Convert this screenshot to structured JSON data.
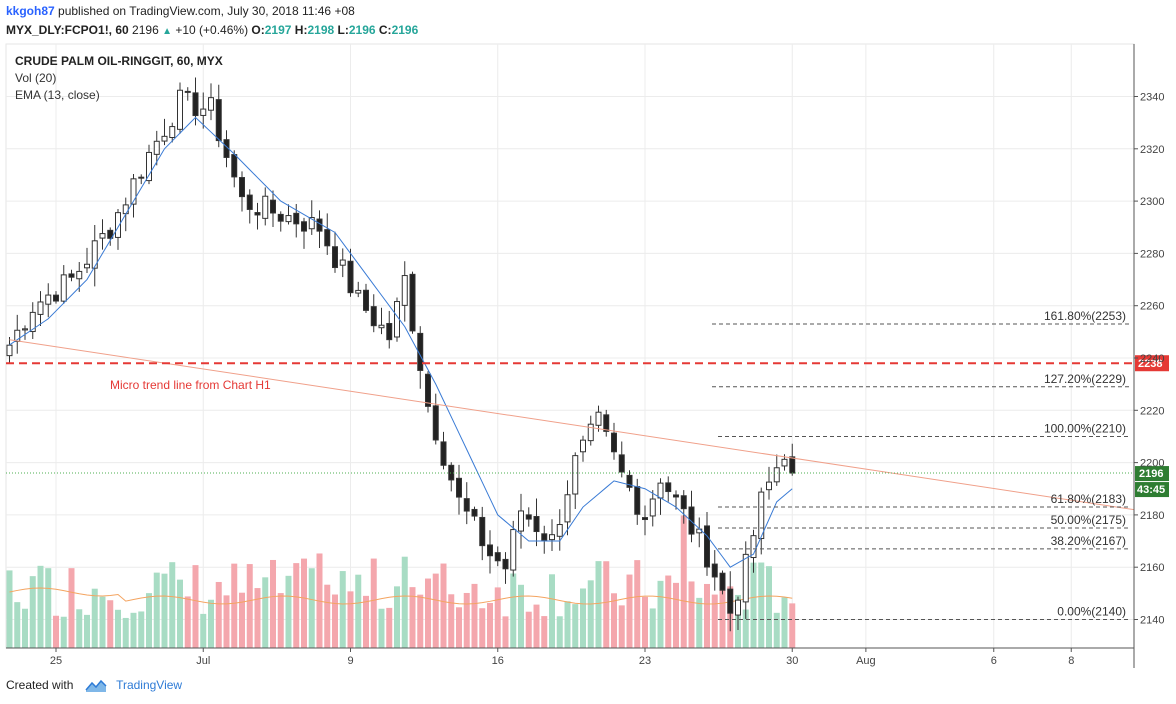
{
  "header": {
    "author": "kkgoh87",
    "published": "published on TradingView.com, July 30, 2018 11:46 +08",
    "symbol": "MYX_DLY:FCPO1!, 60",
    "last": "2196",
    "change": "+10 (+0.46%)",
    "o_label": "O:",
    "o_val": "2197",
    "h_label": "H:",
    "h_val": "2198",
    "l_label": "L:",
    "l_val": "2196",
    "c_label": "C:",
    "c_val": "2196"
  },
  "legend": {
    "title": "CRUDE PALM OIL-RINGGIT, 60, MYX",
    "vol": "Vol (20)",
    "ema": "EMA (13, close)"
  },
  "annotation": "Micro trend line from Chart H1",
  "colors": {
    "up": "#26a69a",
    "down": "#222222",
    "vol_up": "#a8dcc4",
    "vol_down": "#f4a7ad",
    "ema": "#3a7bd5",
    "vol_ma": "#f4a460",
    "trend": "#f0a08a",
    "red_line": "#e53935",
    "price_tag": "#2e7d32"
  },
  "footer": {
    "created_with": "Created with",
    "brand": "TradingView"
  },
  "chart_data": {
    "type": "candlestick",
    "title": "CRUDE PALM OIL-RINGGIT, 60, MYX",
    "y_ticks": [
      2140,
      2160,
      2180,
      2200,
      2220,
      2240,
      2260,
      2280,
      2300,
      2320,
      2340
    ],
    "ylim": [
      2131,
      2352
    ],
    "x_ticks": [
      {
        "label": "25",
        "bar": 6
      },
      {
        "label": "Jul",
        "bar": 25
      },
      {
        "label": "9",
        "bar": 44
      },
      {
        "label": "16",
        "bar": 63
      },
      {
        "label": "23",
        "bar": 82
      },
      {
        "label": "30",
        "bar": 101
      },
      {
        "label": "Aug",
        "bar": 110.5
      },
      {
        "label": "6",
        "bar": 127
      },
      {
        "label": "8",
        "bar": 137
      }
    ],
    "last_price": 2196,
    "price_tag": "2196",
    "countdown_tag": "43:45",
    "horizontal_level": {
      "value": 2238,
      "label": "2238"
    },
    "fibonacci": [
      {
        "label": "161.80%(2253)",
        "value": 2253
      },
      {
        "label": "127.20%(2229)",
        "value": 2229
      },
      {
        "label": "100.00%(2210)",
        "value": 2210
      },
      {
        "label": "61.80%(2183)",
        "value": 2183
      },
      {
        "label": "50.00%(2175)",
        "value": 2175
      },
      {
        "label": "38.20%(2167)",
        "value": 2167
      },
      {
        "label": "0.00%(2140)",
        "value": 2140
      }
    ],
    "trend_line": {
      "from": {
        "bar": 0,
        "value": 2247
      },
      "to": {
        "bar": 146,
        "value": 2182
      }
    },
    "close_anchors": [
      [
        0,
        2245
      ],
      [
        3,
        2260
      ],
      [
        8,
        2270
      ],
      [
        13,
        2290
      ],
      [
        18,
        2318
      ],
      [
        22,
        2338
      ],
      [
        26,
        2335
      ],
      [
        30,
        2300
      ],
      [
        35,
        2295
      ],
      [
        40,
        2290
      ],
      [
        45,
        2262
      ],
      [
        49,
        2248
      ],
      [
        51,
        2270
      ],
      [
        54,
        2222
      ],
      [
        58,
        2185
      ],
      [
        62,
        2165
      ],
      [
        64,
        2160
      ],
      [
        66,
        2182
      ],
      [
        70,
        2170
      ],
      [
        73,
        2200
      ],
      [
        76,
        2215
      ],
      [
        79,
        2195
      ],
      [
        82,
        2180
      ],
      [
        84,
        2195
      ],
      [
        87,
        2180
      ],
      [
        90,
        2165
      ],
      [
        93,
        2143
      ],
      [
        95,
        2160
      ],
      [
        97,
        2185
      ],
      [
        100,
        2205
      ],
      [
        101,
        2196
      ]
    ],
    "ema_anchors": [
      [
        0,
        2245
      ],
      [
        5,
        2255
      ],
      [
        10,
        2270
      ],
      [
        15,
        2295
      ],
      [
        20,
        2320
      ],
      [
        24,
        2332
      ],
      [
        29,
        2318
      ],
      [
        35,
        2300
      ],
      [
        42,
        2288
      ],
      [
        47,
        2268
      ],
      [
        51,
        2252
      ],
      [
        55,
        2230
      ],
      [
        59,
        2205
      ],
      [
        63,
        2180
      ],
      [
        67,
        2170
      ],
      [
        71,
        2170
      ],
      [
        74,
        2183
      ],
      [
        78,
        2193
      ],
      [
        82,
        2190
      ],
      [
        86,
        2183
      ],
      [
        90,
        2172
      ],
      [
        93,
        2160
      ],
      [
        96,
        2165
      ],
      [
        99,
        2185
      ],
      [
        101,
        2190
      ]
    ]
  }
}
